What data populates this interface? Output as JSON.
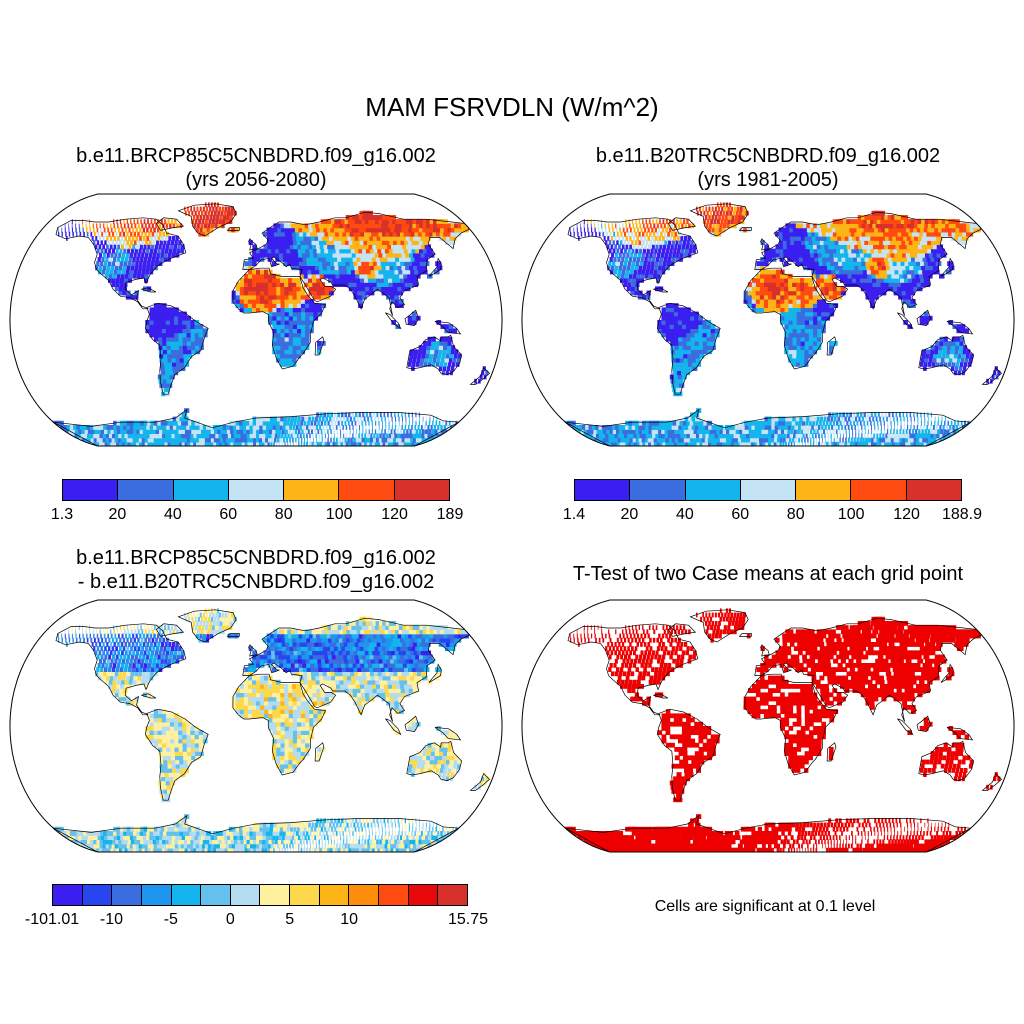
{
  "main_title": "MAM FSRVDLN (W/m^2)",
  "panels": [
    {
      "title_line1": "b.e11.BRCP85C5CNBDRD.f09_g16.002",
      "title_line2": "(yrs 2056-2080)",
      "fill_style": "absolute",
      "colorbar": {
        "colors": [
          "#3b1ef0",
          "#3a6de0",
          "#14b4ec",
          "#c4e4f6",
          "#fdb416",
          "#ff4a10",
          "#d8302a"
        ],
        "labels": [
          "1.3",
          "20",
          "40",
          "60",
          "80",
          "100",
          "120",
          "189"
        ]
      }
    },
    {
      "title_line1": "b.e11.B20TRC5CNBDRD.f09_g16.002",
      "title_line2": "(yrs 1981-2005)",
      "fill_style": "absolute",
      "colorbar": {
        "colors": [
          "#3b1ef0",
          "#3a6de0",
          "#14b4ec",
          "#c4e4f6",
          "#fdb416",
          "#ff4a10",
          "#d8302a"
        ],
        "labels": [
          "1.4",
          "20",
          "40",
          "60",
          "80",
          "100",
          "120",
          "188.9"
        ]
      }
    },
    {
      "title_line1": "b.e11.BRCP85C5CNBDRD.f09_g16.002",
      "title_line2": "- b.e11.B20TRC5CNBDRD.f09_g16.002",
      "fill_style": "difference",
      "colorbar": {
        "colors": [
          "#3b1ef0",
          "#2846f0",
          "#3a6de0",
          "#1e96f0",
          "#14b4ec",
          "#64c0ec",
          "#b4dcf0",
          "#fff0a0",
          "#fdd84a",
          "#fdb416",
          "#ff8c0a",
          "#ff4a10",
          "#e80a0a",
          "#d8302a"
        ],
        "labels": [
          "-101.01",
          "-10",
          "-5",
          "0",
          "5",
          "10",
          "15.75"
        ],
        "label_slots": [
          0,
          2,
          4,
          6,
          8,
          10,
          14
        ]
      }
    },
    {
      "title_line1": "T-Test of two Case means at each grid point",
      "title_line2": "",
      "fill_style": "significance",
      "note": "Cells are significant at 0.1 level"
    }
  ],
  "colors": {
    "ocean": "#ffffff",
    "significance": "#ee0000",
    "coast": "#000000"
  }
}
